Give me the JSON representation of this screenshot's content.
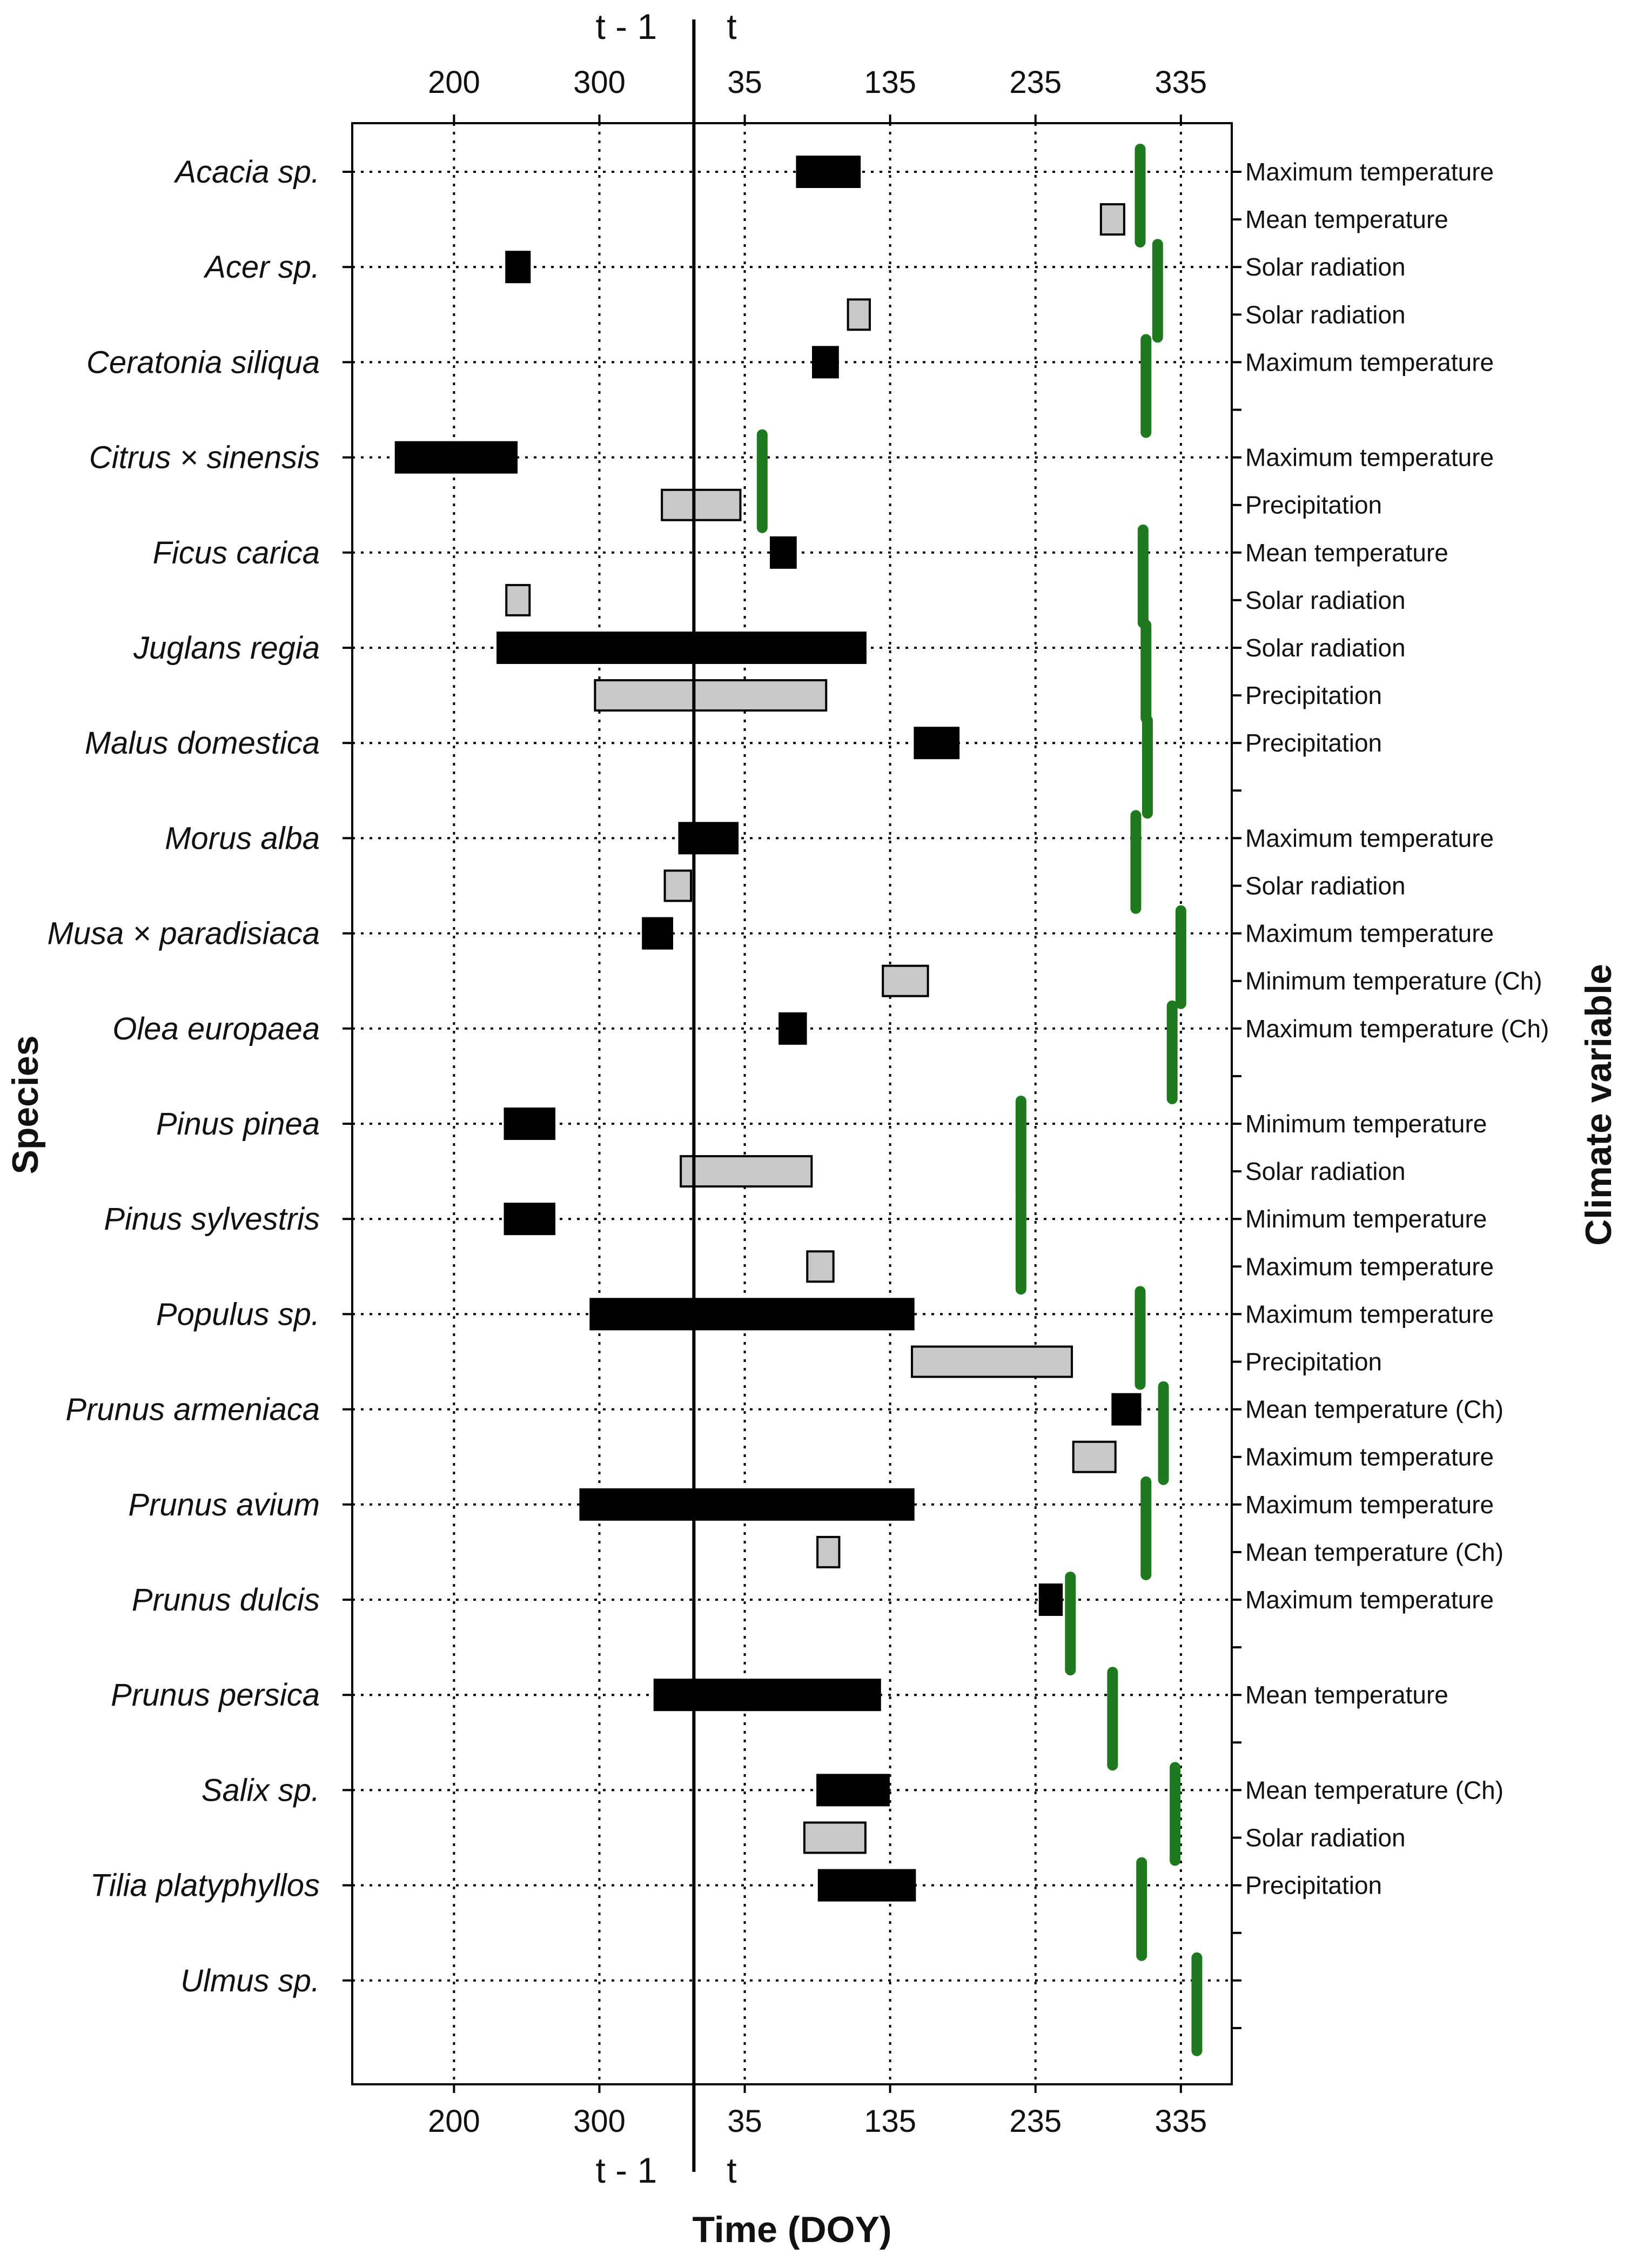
{
  "chart_data": {
    "type": "gantt",
    "xlabel": "Time (DOY)",
    "ylabel": "Species",
    "y2label": "Climate variable",
    "period_labels": {
      "previous": "t - 1",
      "current": "t"
    },
    "x_ticks": [
      {
        "label": "200",
        "continuous": 200
      },
      {
        "label": "300",
        "continuous": 300
      },
      {
        "label": "35",
        "continuous": 400
      },
      {
        "label": "135",
        "continuous": 500
      },
      {
        "label": "235",
        "continuous": 600
      },
      {
        "label": "335",
        "continuous": 700
      }
    ],
    "x_range": [
      130,
      735
    ],
    "year_boundary": 365,
    "rows": [
      {
        "species": "Acacia sp.",
        "climate_variable": "Maximum temperature",
        "window": [
          436,
          479
        ],
        "kind": "main"
      },
      {
        "species": "",
        "climate_variable": "Mean temperature",
        "window": [
          645,
          661
        ],
        "kind": "secondary"
      },
      {
        "species": "Acer sp.",
        "climate_variable": "Solar radiation",
        "window": [
          236,
          252
        ],
        "kind": "main"
      },
      {
        "species": "",
        "climate_variable": "Solar radiation",
        "window": [
          471,
          486
        ],
        "kind": "secondary"
      },
      {
        "species": "Ceratonia siliqua",
        "climate_variable": "Maximum temperature",
        "window": [
          447,
          464
        ],
        "kind": "main"
      },
      {
        "species": "",
        "climate_variable": "",
        "window": null,
        "kind": "none"
      },
      {
        "species": "Citrus × sinensis",
        "climate_variable": "Maximum temperature",
        "window": [
          160,
          243
        ],
        "kind": "main"
      },
      {
        "species": "",
        "climate_variable": "Precipitation",
        "window": [
          343,
          397
        ],
        "kind": "secondary"
      },
      {
        "species": "Ficus carica",
        "climate_variable": "Mean temperature",
        "window": [
          418,
          435
        ],
        "kind": "main"
      },
      {
        "species": "",
        "climate_variable": "Solar radiation",
        "window": [
          236,
          252
        ],
        "kind": "secondary"
      },
      {
        "species": "Juglans regia",
        "climate_variable": "Solar radiation",
        "window": [
          230,
          483
        ],
        "kind": "main"
      },
      {
        "species": "",
        "climate_variable": "Precipitation",
        "window": [
          297,
          456
        ],
        "kind": "secondary"
      },
      {
        "species": "Malus domestica",
        "climate_variable": "Precipitation",
        "window": [
          517,
          547
        ],
        "kind": "main"
      },
      {
        "species": "",
        "climate_variable": "",
        "window": null,
        "kind": "none"
      },
      {
        "species": "Morus alba",
        "climate_variable": "Maximum temperature",
        "window": [
          355,
          395
        ],
        "kind": "main"
      },
      {
        "species": "",
        "climate_variable": "Solar radiation",
        "window": [
          345,
          363
        ],
        "kind": "secondary"
      },
      {
        "species": "Musa × paradisiaca",
        "climate_variable": "Maximum temperature",
        "window": [
          330,
          350
        ],
        "kind": "main"
      },
      {
        "species": "",
        "climate_variable": "Minimum temperature (Ch)",
        "window": [
          495,
          526
        ],
        "kind": "secondary"
      },
      {
        "species": "Olea europaea",
        "climate_variable": "Maximum temperature (Ch)",
        "window": [
          424,
          442
        ],
        "kind": "main"
      },
      {
        "species": "",
        "climate_variable": "",
        "window": null,
        "kind": "none"
      },
      {
        "species": "Pinus pinea",
        "climate_variable": "Minimum temperature",
        "window": [
          235,
          269
        ],
        "kind": "main"
      },
      {
        "species": "",
        "climate_variable": "Solar radiation",
        "window": [
          356,
          446
        ],
        "kind": "secondary"
      },
      {
        "species": "Pinus sylvestris",
        "climate_variable": "Minimum temperature",
        "window": [
          235,
          269
        ],
        "kind": "main"
      },
      {
        "species": "",
        "climate_variable": "Maximum temperature",
        "window": [
          443,
          461
        ],
        "kind": "secondary"
      },
      {
        "species": "Populus sp.",
        "climate_variable": "Maximum temperature",
        "window": [
          294,
          516
        ],
        "kind": "main"
      },
      {
        "species": "",
        "climate_variable": "Precipitation",
        "window": [
          515,
          625
        ],
        "kind": "secondary"
      },
      {
        "species": "Prunus armeniaca",
        "climate_variable": "Mean temperature (Ch)",
        "window": [
          653,
          672
        ],
        "kind": "main"
      },
      {
        "species": "",
        "climate_variable": "Maximum temperature",
        "window": [
          626,
          655
        ],
        "kind": "secondary"
      },
      {
        "species": "Prunus avium",
        "climate_variable": "Maximum temperature",
        "window": [
          287,
          516
        ],
        "kind": "main"
      },
      {
        "species": "",
        "climate_variable": "Mean temperature (Ch)",
        "window": [
          450,
          465
        ],
        "kind": "secondary"
      },
      {
        "species": "Prunus dulcis",
        "climate_variable": "Maximum temperature",
        "window": [
          603,
          618
        ],
        "kind": "main"
      },
      {
        "species": "",
        "climate_variable": "",
        "window": null,
        "kind": "none"
      },
      {
        "species": "Prunus persica",
        "climate_variable": "Mean temperature",
        "window": [
          338,
          493
        ],
        "kind": "main"
      },
      {
        "species": "",
        "climate_variable": "",
        "window": null,
        "kind": "none"
      },
      {
        "species": "Salix sp.",
        "climate_variable": "Mean temperature (Ch)",
        "window": [
          450,
          499
        ],
        "kind": "main"
      },
      {
        "species": "",
        "climate_variable": "Solar radiation",
        "window": [
          441,
          483
        ],
        "kind": "secondary"
      },
      {
        "species": "Tilia platyphyllos",
        "climate_variable": "Precipitation",
        "window": [
          451,
          517
        ],
        "kind": "main"
      },
      {
        "species": "",
        "climate_variable": "",
        "window": null,
        "kind": "none"
      },
      {
        "species": "Ulmus sp.",
        "climate_variable": "",
        "window": null,
        "kind": "none"
      },
      {
        "species": "",
        "climate_variable": "",
        "window": null,
        "kind": "none"
      }
    ],
    "green_markers": [
      {
        "species": "Acacia sp.",
        "x": 672
      },
      {
        "species": "Acer sp.",
        "x": 684
      },
      {
        "species": "Ceratonia siliqua",
        "x": 676
      },
      {
        "species": "Citrus × sinensis",
        "x": 412
      },
      {
        "species": "Ficus carica",
        "x": 674
      },
      {
        "species": "Juglans regia",
        "x": 676
      },
      {
        "species": "Malus domestica",
        "x": 677
      },
      {
        "species": "Morus alba",
        "x": 669
      },
      {
        "species": "Musa × paradisiaca",
        "x": 700
      },
      {
        "species": "Olea europaea",
        "x": 694
      },
      {
        "species": "Pinus pinea",
        "x": 590
      },
      {
        "species": "Pinus sylvestris",
        "x": 590
      },
      {
        "species": "Populus sp.",
        "x": 672
      },
      {
        "species": "Prunus armeniaca",
        "x": 688
      },
      {
        "species": "Prunus avium",
        "x": 676
      },
      {
        "species": "Prunus dulcis",
        "x": 624
      },
      {
        "species": "Prunus persica",
        "x": 653
      },
      {
        "species": "Salix sp.",
        "x": 696
      },
      {
        "species": "Tilia platyphyllos",
        "x": 673
      },
      {
        "species": "Ulmus sp.",
        "x": 711
      }
    ],
    "colors": {
      "main_bar": "#000000",
      "secondary_bar": "#c8c8c8",
      "marker": "#1f7a1f",
      "axis": "#000000"
    }
  }
}
